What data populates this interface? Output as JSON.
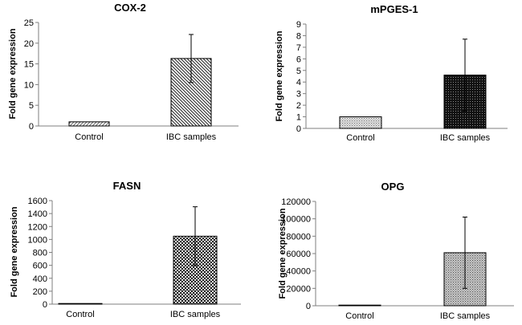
{
  "chart_data": [
    {
      "type": "bar",
      "title": "COX-2",
      "ylabel": "Fold gene expression",
      "categories": [
        "Control",
        "IBC samples"
      ],
      "values": [
        1,
        16.3
      ],
      "error_upper": [
        0,
        5.8
      ],
      "error_lower": [
        0,
        5.8
      ],
      "ylim": [
        0,
        25
      ],
      "yticks": [
        0,
        5,
        10,
        15,
        20,
        25
      ],
      "patterns": [
        "diag-right-light",
        "diag-left"
      ],
      "grid": false,
      "legend": "none"
    },
    {
      "type": "bar",
      "title": "mPGES-1",
      "ylabel": "Fold gene expression",
      "categories": [
        "Control",
        "IBC samples"
      ],
      "values": [
        1,
        4.6
      ],
      "error_upper": [
        0,
        3.1
      ],
      "error_lower": [
        0,
        3.1
      ],
      "ylim": [
        0,
        9
      ],
      "yticks": [
        0,
        1,
        2,
        3,
        4,
        5,
        6,
        7,
        8,
        9
      ],
      "patterns": [
        "dots-light",
        "dots-dark"
      ],
      "grid": false,
      "legend": "none"
    },
    {
      "type": "bar",
      "title": "FASN",
      "ylabel": "Fold gene expression",
      "categories": [
        "Control",
        "IBC samples"
      ],
      "values": [
        5,
        1050
      ],
      "error_upper": [
        0,
        455
      ],
      "error_lower": [
        0,
        455
      ],
      "ylim": [
        0,
        1600
      ],
      "yticks": [
        0,
        200,
        400,
        600,
        800,
        1000,
        1200,
        1400,
        1600
      ],
      "patterns": [
        "checker-light",
        "checker-dark"
      ],
      "grid": false,
      "legend": "none"
    },
    {
      "type": "bar",
      "title": "OPG",
      "ylabel": "Fold gene expression",
      "categories": [
        "Control",
        "IBC samples"
      ],
      "values": [
        500,
        61000
      ],
      "error_upper": [
        0,
        41000
      ],
      "error_lower": [
        0,
        41000
      ],
      "ylim": [
        0,
        120000
      ],
      "yticks": [
        0,
        20000,
        40000,
        60000,
        80000,
        100000,
        120000
      ],
      "patterns": [
        "dots-light",
        "dots-medium"
      ],
      "grid": false,
      "legend": "none"
    }
  ]
}
